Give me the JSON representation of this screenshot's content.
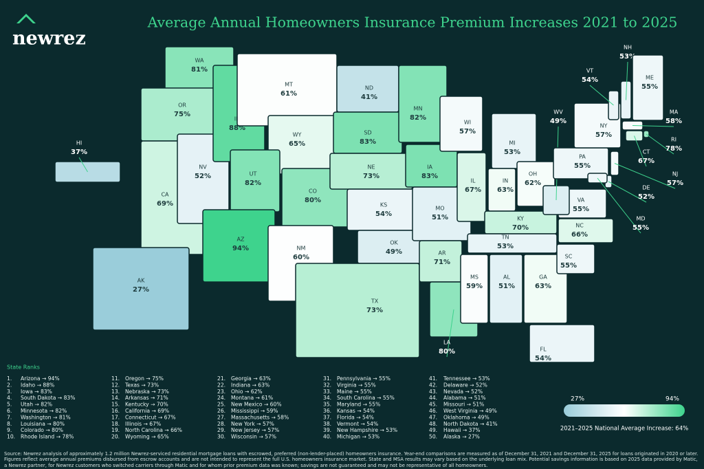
{
  "logo": "newrez",
  "title": "Average Annual Homeowners Insurance Premium Increases 2021 to 2025",
  "states": [
    {
      "abbr": "WA",
      "value": 81,
      "value_label": "81%"
    },
    {
      "abbr": "OR",
      "value": 75,
      "value_label": "75%"
    },
    {
      "abbr": "CA",
      "value": 69,
      "value_label": "69%"
    },
    {
      "abbr": "NV",
      "value": 52,
      "value_label": "52%"
    },
    {
      "abbr": "ID",
      "value": 88,
      "value_label": "88%"
    },
    {
      "abbr": "MT",
      "value": 61,
      "value_label": "61%"
    },
    {
      "abbr": "WY",
      "value": 65,
      "value_label": "65%"
    },
    {
      "abbr": "UT",
      "value": 82,
      "value_label": "82%"
    },
    {
      "abbr": "AZ",
      "value": 94,
      "value_label": "94%"
    },
    {
      "abbr": "CO",
      "value": 80,
      "value_label": "80%"
    },
    {
      "abbr": "NM",
      "value": 60,
      "value_label": "60%"
    },
    {
      "abbr": "ND",
      "value": 41,
      "value_label": "41%"
    },
    {
      "abbr": "SD",
      "value": 83,
      "value_label": "83%"
    },
    {
      "abbr": "NE",
      "value": 73,
      "value_label": "73%"
    },
    {
      "abbr": "KS",
      "value": 54,
      "value_label": "54%"
    },
    {
      "abbr": "OK",
      "value": 49,
      "value_label": "49%"
    },
    {
      "abbr": "TX",
      "value": 73,
      "value_label": "73%"
    },
    {
      "abbr": "MN",
      "value": 82,
      "value_label": "82%"
    },
    {
      "abbr": "IA",
      "value": 83,
      "value_label": "83%"
    },
    {
      "abbr": "MO",
      "value": 51,
      "value_label": "51%"
    },
    {
      "abbr": "AR",
      "value": 71,
      "value_label": "71%"
    },
    {
      "abbr": "LA",
      "value": 80,
      "value_label": "80%"
    },
    {
      "abbr": "WI",
      "value": 57,
      "value_label": "57%"
    },
    {
      "abbr": "IL",
      "value": 67,
      "value_label": "67%"
    },
    {
      "abbr": "MI",
      "value": 53,
      "value_label": "53%"
    },
    {
      "abbr": "IN",
      "value": 63,
      "value_label": "63%"
    },
    {
      "abbr": "OH",
      "value": 62,
      "value_label": "62%"
    },
    {
      "abbr": "KY",
      "value": 70,
      "value_label": "70%"
    },
    {
      "abbr": "TN",
      "value": 53,
      "value_label": "53%"
    },
    {
      "abbr": "MS",
      "value": 59,
      "value_label": "59%"
    },
    {
      "abbr": "AL",
      "value": 51,
      "value_label": "51%"
    },
    {
      "abbr": "GA",
      "value": 63,
      "value_label": "63%"
    },
    {
      "abbr": "FL",
      "value": 54,
      "value_label": "54%"
    },
    {
      "abbr": "SC",
      "value": 55,
      "value_label": "55%"
    },
    {
      "abbr": "NC",
      "value": 66,
      "value_label": "66%"
    },
    {
      "abbr": "VA",
      "value": 55,
      "value_label": "55%"
    },
    {
      "abbr": "WV",
      "value": 49,
      "value_label": "49%"
    },
    {
      "abbr": "PA",
      "value": 55,
      "value_label": "55%"
    },
    {
      "abbr": "NY",
      "value": 57,
      "value_label": "57%"
    },
    {
      "abbr": "VT",
      "value": 54,
      "value_label": "54%"
    },
    {
      "abbr": "NH",
      "value": 53,
      "value_label": "53%"
    },
    {
      "abbr": "ME",
      "value": 55,
      "value_label": "55%"
    },
    {
      "abbr": "MA",
      "value": 58,
      "value_label": "58%"
    },
    {
      "abbr": "RI",
      "value": 78,
      "value_label": "78%"
    },
    {
      "abbr": "CT",
      "value": 67,
      "value_label": "67%"
    },
    {
      "abbr": "NJ",
      "value": 57,
      "value_label": "57%"
    },
    {
      "abbr": "DE",
      "value": 52,
      "value_label": "52%"
    },
    {
      "abbr": "MD",
      "value": 55,
      "value_label": "55%"
    },
    {
      "abbr": "HI",
      "value": 37,
      "value_label": "37%"
    },
    {
      "abbr": "AK",
      "value": 27,
      "value_label": "27%"
    }
  ],
  "ranks_title": "State Ranks",
  "ranks": [
    {
      "rank": "1.",
      "text": "Arizona → 94%"
    },
    {
      "rank": "2.",
      "text": "Idaho → 88%"
    },
    {
      "rank": "3.",
      "text": "Iowa → 83%"
    },
    {
      "rank": "4.",
      "text": "South Dakota → 83%"
    },
    {
      "rank": "5.",
      "text": "Utah → 82%"
    },
    {
      "rank": "6.",
      "text": "Minnesota → 82%"
    },
    {
      "rank": "7.",
      "text": "Washington → 81%"
    },
    {
      "rank": "8.",
      "text": "Louisiana → 80%"
    },
    {
      "rank": "9.",
      "text": "Colorado → 80%"
    },
    {
      "rank": "10.",
      "text": "Rhode Island → 78%"
    },
    {
      "rank": "11.",
      "text": "Oregon → 75%"
    },
    {
      "rank": "12.",
      "text": "Texas → 73%"
    },
    {
      "rank": "13.",
      "text": "Nebraska → 73%"
    },
    {
      "rank": "14.",
      "text": "Arkansas → 71%"
    },
    {
      "rank": "15.",
      "text": "Kentucky → 70%"
    },
    {
      "rank": "16.",
      "text": "California → 69%"
    },
    {
      "rank": "17.",
      "text": "Connecticut → 67%"
    },
    {
      "rank": "18.",
      "text": "Illinois → 67%"
    },
    {
      "rank": "19.",
      "text": "North Carolina → 66%"
    },
    {
      "rank": "20.",
      "text": "Wyoming → 65%"
    },
    {
      "rank": "21.",
      "text": "Georgia → 63%"
    },
    {
      "rank": "22.",
      "text": "Indiana → 63%"
    },
    {
      "rank": "23.",
      "text": "Ohio → 62%"
    },
    {
      "rank": "24.",
      "text": "Montana → 61%"
    },
    {
      "rank": "25.",
      "text": "New Mexico → 60%"
    },
    {
      "rank": "26.",
      "text": "Mississippi → 59%"
    },
    {
      "rank": "27.",
      "text": "Massachusetts → 58%"
    },
    {
      "rank": "28.",
      "text": "New York → 57%"
    },
    {
      "rank": "29.",
      "text": "New Jersey → 57%"
    },
    {
      "rank": "30.",
      "text": "Wisconsin → 57%"
    },
    {
      "rank": "31.",
      "text": "Pennsylvania → 55%"
    },
    {
      "rank": "32.",
      "text": "Virginia → 55%"
    },
    {
      "rank": "33.",
      "text": "Maine → 55%"
    },
    {
      "rank": "34.",
      "text": "South Carolina → 55%"
    },
    {
      "rank": "35.",
      "text": "Maryland → 55%"
    },
    {
      "rank": "36.",
      "text": "Kansas → 54%"
    },
    {
      "rank": "37.",
      "text": "Florida → 54%"
    },
    {
      "rank": "38.",
      "text": "Vermont → 54%"
    },
    {
      "rank": "39.",
      "text": "New Hampshire → 53%"
    },
    {
      "rank": "40.",
      "text": "Michigan → 53%"
    },
    {
      "rank": "41.",
      "text": "Tennessee → 53%"
    },
    {
      "rank": "42.",
      "text": "Delaware → 52%"
    },
    {
      "rank": "43.",
      "text": "Nevada → 52%"
    },
    {
      "rank": "44.",
      "text": "Alabama → 51%"
    },
    {
      "rank": "45.",
      "text": "Missouri → 51%"
    },
    {
      "rank": "46.",
      "text": "West Virginia → 49%"
    },
    {
      "rank": "47.",
      "text": "Oklahoma → 49%"
    },
    {
      "rank": "48.",
      "text": "North Dakota → 41%"
    },
    {
      "rank": "49.",
      "text": "Hawaii → 37%"
    },
    {
      "rank": "50.",
      "text": "Alaska → 27%"
    }
  ],
  "legend": {
    "min": 27,
    "min_label": "27%",
    "max": 94,
    "max_label": "94%"
  },
  "national_average": "2021–2025 National Average Increase: 64%",
  "footnote": "Source: Newrez analysis of approximately 1.2 million Newrez-serviced residential mortgage loans with escrowed, preferred (non-lender-placed) homeowners insurance. Year-end comparisons are measured as of December 31, 2021 and December 31, 2025 for loans originated in 2020 or later. Figures reflect average annual premiums disbursed from escrow accounts and are not intended to represent the full U.S. homeowners insurance market. State and MSA results may vary based on the underlying loan mix. Potential savings information is based on 2025 data provided by Matic, a Newrez partner, for Newrez customers who switched carriers through Matic and for whom prior premium data was known; savings are not guaranteed and may not be representative of all homeowners."
}
